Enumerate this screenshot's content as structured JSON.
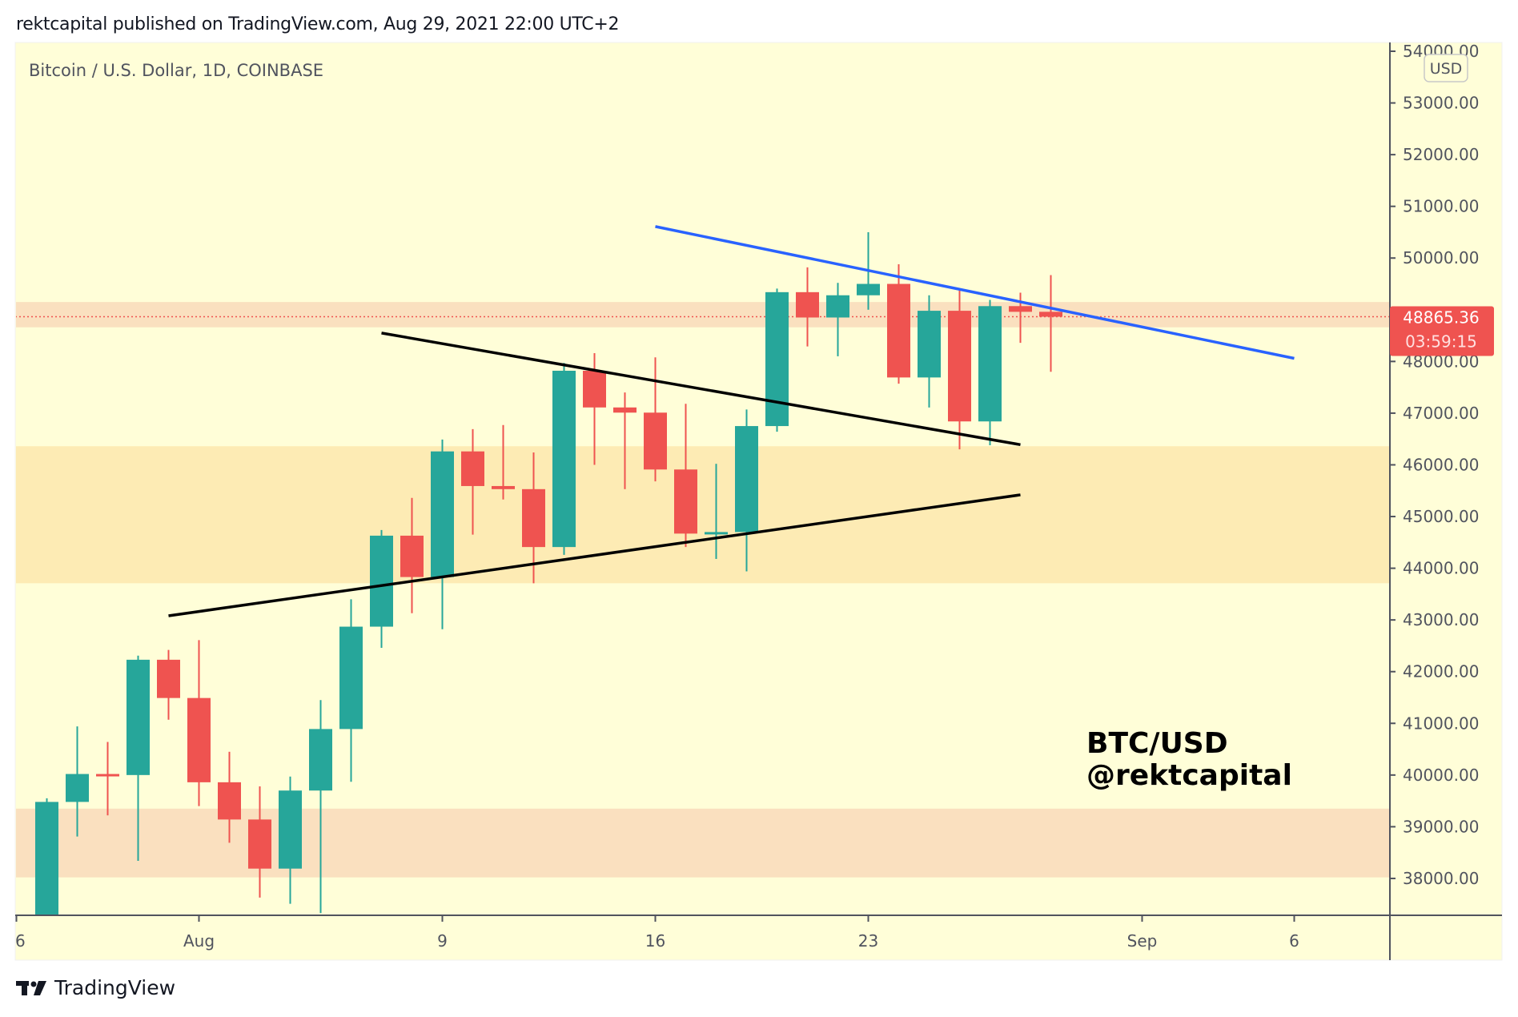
{
  "header": {
    "text": "rektcapital published on TradingView.com, Aug 29, 2021 22:00 UTC+2"
  },
  "footer": {
    "brand": "TradingView"
  },
  "colors": {
    "up": "#26a69a",
    "down": "#ef5350",
    "background": "#fffed8",
    "zone_rose": "#fae0bf",
    "zone_orange": "#fdebb4",
    "blue_line": "#2962ff",
    "black_line": "#000000"
  },
  "chart_data": {
    "type": "candlestick",
    "title": "Bitcoin / U.S. Dollar, 1D, COINBASE",
    "currency_badge": "USD",
    "watermark": [
      "BTC/USD",
      "@rektcapital"
    ],
    "ylim": [
      37300,
      54200
    ],
    "y_ticks": [
      38000,
      39000,
      40000,
      41000,
      42000,
      43000,
      44000,
      45000,
      46000,
      47000,
      48000,
      49000,
      50000,
      51000,
      52000,
      53000,
      54000
    ],
    "y_tick_labels": [
      "38000.00",
      "39000.00",
      "40000.00",
      "41000.00",
      "42000.00",
      "43000.00",
      "44000.00",
      "45000.00",
      "46000.00",
      "47000.00",
      "48000.00",
      "49000.00",
      "50000.00",
      "51000.00",
      "52000.00",
      "53000.00",
      "54000.00"
    ],
    "x_ticks": [
      {
        "day": -1,
        "label": "6"
      },
      {
        "day": 5,
        "label": "Aug"
      },
      {
        "day": 13,
        "label": "9"
      },
      {
        "day": 20,
        "label": "16"
      },
      {
        "day": 27,
        "label": "23"
      },
      {
        "day": 36,
        "label": "Sep"
      },
      {
        "day": 41,
        "label": "6"
      }
    ],
    "x_note": "day 0 = Jul 27, 2021",
    "last_price": {
      "value": 48865.36,
      "label": "48865.36",
      "countdown": "03:59:15"
    },
    "candles": [
      {
        "date": "Jul 27",
        "o": 37260,
        "h": 39550,
        "l": 36400,
        "c": 39480
      },
      {
        "date": "Jul 28",
        "o": 39480,
        "h": 40940,
        "l": 38810,
        "c": 40020
      },
      {
        "date": "Jul 29",
        "o": 40020,
        "h": 40640,
        "l": 39220,
        "c": 40000
      },
      {
        "date": "Jul 30",
        "o": 40000,
        "h": 42310,
        "l": 38340,
        "c": 42230
      },
      {
        "date": "Jul 31",
        "o": 42230,
        "h": 42420,
        "l": 41070,
        "c": 41490
      },
      {
        "date": "Aug 1",
        "o": 41490,
        "h": 42610,
        "l": 39400,
        "c": 39860
      },
      {
        "date": "Aug 2",
        "o": 39860,
        "h": 40450,
        "l": 38690,
        "c": 39140
      },
      {
        "date": "Aug 3",
        "o": 39140,
        "h": 39780,
        "l": 37630,
        "c": 38190
      },
      {
        "date": "Aug 4",
        "o": 38190,
        "h": 39970,
        "l": 37510,
        "c": 39700
      },
      {
        "date": "Aug 5",
        "o": 39700,
        "h": 41450,
        "l": 37330,
        "c": 40890
      },
      {
        "date": "Aug 6",
        "o": 40890,
        "h": 43400,
        "l": 39870,
        "c": 42870
      },
      {
        "date": "Aug 7",
        "o": 42870,
        "h": 44740,
        "l": 42460,
        "c": 44630
      },
      {
        "date": "Aug 8",
        "o": 44630,
        "h": 45360,
        "l": 43130,
        "c": 43830
      },
      {
        "date": "Aug 9",
        "o": 43830,
        "h": 46490,
        "l": 42820,
        "c": 46260
      },
      {
        "date": "Aug 10",
        "o": 46260,
        "h": 46690,
        "l": 44650,
        "c": 45590
      },
      {
        "date": "Aug 11",
        "o": 45590,
        "h": 46770,
        "l": 45330,
        "c": 45530
      },
      {
        "date": "Aug 12",
        "o": 45530,
        "h": 46240,
        "l": 43710,
        "c": 44410
      },
      {
        "date": "Aug 13",
        "o": 44410,
        "h": 47970,
        "l": 44260,
        "c": 47820
      },
      {
        "date": "Aug 14",
        "o": 47820,
        "h": 48160,
        "l": 46000,
        "c": 47110
      },
      {
        "date": "Aug 15",
        "o": 47110,
        "h": 47400,
        "l": 45530,
        "c": 47010
      },
      {
        "date": "Aug 16",
        "o": 47010,
        "h": 48080,
        "l": 45680,
        "c": 45910
      },
      {
        "date": "Aug 17",
        "o": 45910,
        "h": 47180,
        "l": 44410,
        "c": 44670
      },
      {
        "date": "Aug 18",
        "o": 44670,
        "h": 46020,
        "l": 44180,
        "c": 44700
      },
      {
        "date": "Aug 19",
        "o": 44700,
        "h": 47070,
        "l": 43940,
        "c": 46750
      },
      {
        "date": "Aug 20",
        "o": 46750,
        "h": 49410,
        "l": 46640,
        "c": 49340
      },
      {
        "date": "Aug 21",
        "o": 49340,
        "h": 49820,
        "l": 48290,
        "c": 48850
      },
      {
        "date": "Aug 22",
        "o": 48850,
        "h": 49520,
        "l": 48100,
        "c": 49280
      },
      {
        "date": "Aug 23",
        "o": 49280,
        "h": 50500,
        "l": 49000,
        "c": 49500
      },
      {
        "date": "Aug 24",
        "o": 49500,
        "h": 49880,
        "l": 47570,
        "c": 47690
      },
      {
        "date": "Aug 25",
        "o": 47690,
        "h": 49280,
        "l": 47110,
        "c": 48980
      },
      {
        "date": "Aug 26",
        "o": 48980,
        "h": 49370,
        "l": 46300,
        "c": 46840
      },
      {
        "date": "Aug 27",
        "o": 46840,
        "h": 49190,
        "l": 46380,
        "c": 49070
      },
      {
        "date": "Aug 28",
        "o": 49070,
        "h": 49330,
        "l": 48360,
        "c": 48960
      },
      {
        "date": "Aug 29",
        "o": 48960,
        "h": 49670,
        "l": 47800,
        "c": 48865.36
      }
    ],
    "zones": [
      {
        "name": "resistance-zone",
        "from": 48660,
        "to": 49150,
        "color": "zone_rose"
      },
      {
        "name": "mid-zone",
        "from": 43710,
        "to": 46360,
        "color": "zone_orange"
      },
      {
        "name": "support-zone",
        "from": 38020,
        "to": 39350,
        "color": "zone_rose"
      }
    ],
    "trendlines": [
      {
        "name": "blue-descending-trendline",
        "color": "blue_line",
        "p1": {
          "day": 20,
          "price": 50610
        },
        "p2": {
          "day": 41,
          "price": 48060
        }
      },
      {
        "name": "upper-wedge-trendline",
        "color": "black_line",
        "p1": {
          "day": 11,
          "price": 48550
        },
        "p2": {
          "day": 32,
          "price": 46390
        }
      },
      {
        "name": "lower-wedge-trendline",
        "color": "black_line",
        "p1": {
          "day": 4,
          "price": 43080
        },
        "p2": {
          "day": 32,
          "price": 45420
        }
      }
    ]
  }
}
